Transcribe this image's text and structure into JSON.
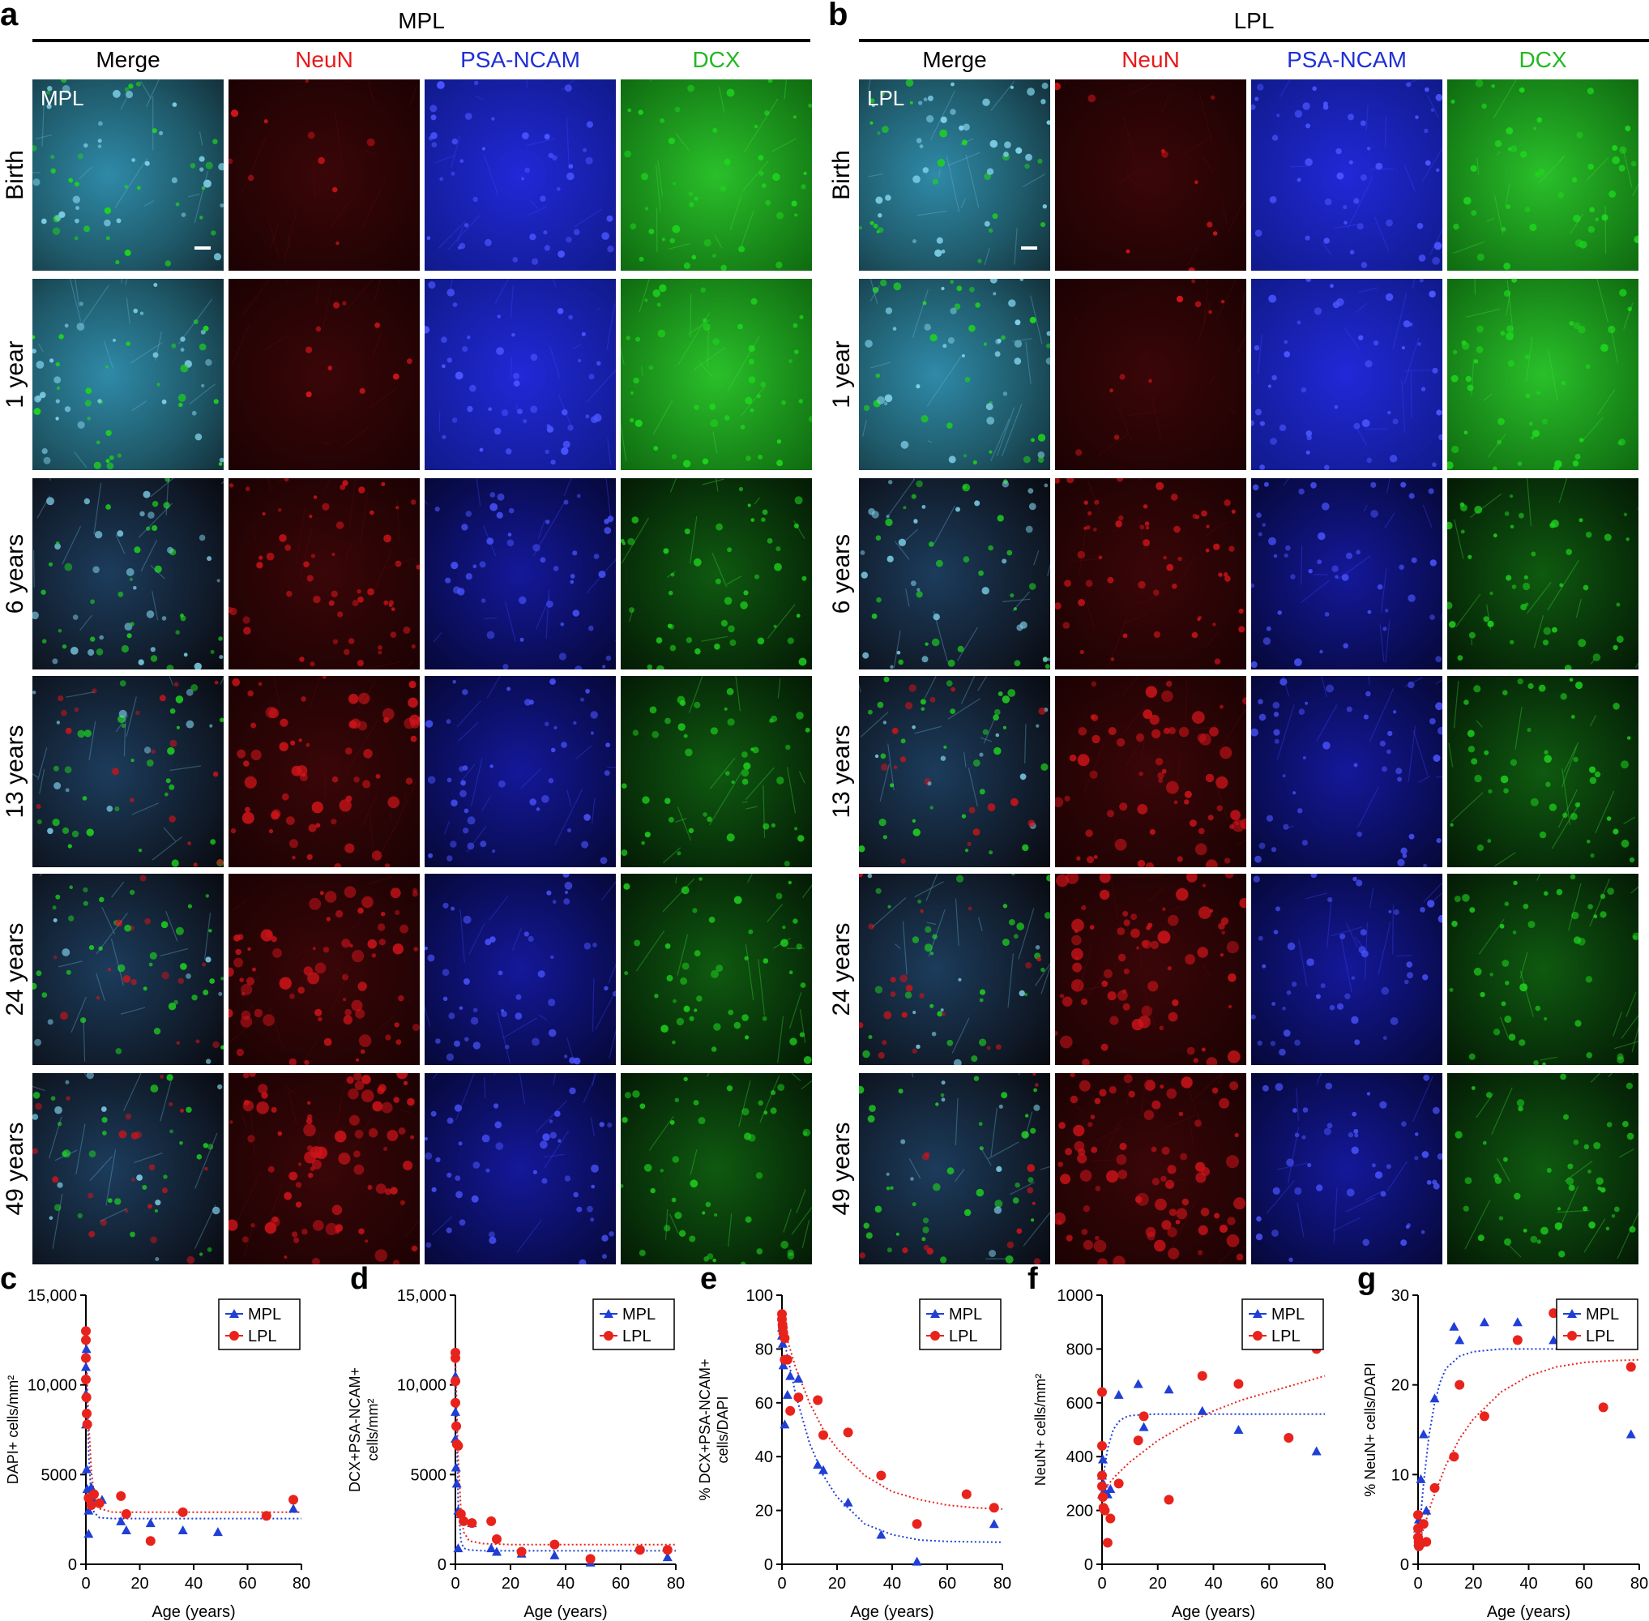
{
  "panel_letters": {
    "a": "a",
    "b": "b",
    "c": "c",
    "d": "d",
    "e": "e",
    "f": "f",
    "g": "g"
  },
  "regions": {
    "left": "MPL",
    "right": "LPL"
  },
  "columns": [
    {
      "label": "Merge",
      "color": "#000000"
    },
    {
      "label": "NeuN",
      "color": "#e8191c"
    },
    {
      "label": "PSA-NCAM",
      "color": "#1f2fd6"
    },
    {
      "label": "DCX",
      "color": "#22b822"
    }
  ],
  "rows": [
    "Birth",
    "1 year",
    "6 years",
    "13 years",
    "24 years",
    "49 years"
  ],
  "inset_labels": {
    "left": "MPL",
    "right": "LPL"
  },
  "micro_colors": {
    "red": "#d0141a",
    "blue": "#1a22e0",
    "green": "#1ed41e",
    "merge_base": "#2a6a8a"
  },
  "legend_colors": {
    "MPL": "#1f3fd6",
    "LPL": "#e8231c"
  },
  "chart_data": [
    {
      "type": "scatter",
      "panel": "c",
      "xlabel": "Age (years)",
      "ylabel": "DAPI+ cells/mm²",
      "xlim": [
        0,
        80
      ],
      "ylim": [
        0,
        15000
      ],
      "xticks": [
        "0",
        "20",
        "40",
        "60",
        "80"
      ],
      "yticks": [
        "0",
        "5000",
        "10,000",
        "15,000"
      ],
      "legend_position": "top-right",
      "series": [
        {
          "name": "MPL",
          "marker": "triangle",
          "x": [
            0,
            0,
            0,
            0.2,
            0.3,
            0.5,
            1,
            1,
            2,
            3,
            6,
            13,
            15,
            24,
            36,
            49,
            77
          ],
          "y": [
            7800,
            9500,
            11000,
            12000,
            5300,
            4200,
            3000,
            1700,
            4300,
            3500,
            3600,
            2400,
            1900,
            2300,
            1900,
            1800,
            3100
          ]
        },
        {
          "name": "LPL",
          "marker": "circle",
          "x": [
            0,
            0,
            0,
            0,
            0.2,
            0.3,
            0.5,
            1,
            2,
            3,
            5,
            13,
            15,
            24,
            36,
            67,
            77
          ],
          "y": [
            13000,
            12500,
            11500,
            10300,
            9300,
            8400,
            7800,
            3700,
            3300,
            3900,
            3400,
            3800,
            2800,
            1300,
            2900,
            2700,
            3600
          ]
        },
        {
          "name": "MPL fit",
          "style": "dotted",
          "x": [
            0,
            1,
            2,
            3,
            5,
            10,
            20,
            40,
            60,
            80
          ],
          "y": [
            12000,
            6200,
            3700,
            2900,
            2600,
            2550,
            2550,
            2550,
            2550,
            2550
          ]
        },
        {
          "name": "LPL fit",
          "style": "dotted",
          "x": [
            0,
            1,
            2,
            3,
            5,
            10,
            20,
            40,
            60,
            80
          ],
          "y": [
            12500,
            8000,
            5200,
            3900,
            3100,
            2900,
            2900,
            2900,
            2900,
            2900
          ]
        }
      ]
    },
    {
      "type": "scatter",
      "panel": "d",
      "xlabel": "Age (years)",
      "ylabel": "DCX+PSA-NCAM+ cells/mm²",
      "xlim": [
        0,
        80
      ],
      "ylim": [
        0,
        15000
      ],
      "xticks": [
        "0",
        "20",
        "40",
        "60",
        "80"
      ],
      "yticks": [
        "0",
        "5000",
        "10,000",
        "15,000"
      ],
      "legend_position": "top-right",
      "series": [
        {
          "name": "MPL",
          "marker": "triangle",
          "x": [
            0,
            0,
            0,
            0.2,
            0.5,
            1,
            1,
            2,
            6,
            13,
            15,
            24,
            36,
            49,
            77
          ],
          "y": [
            10500,
            8500,
            7000,
            5400,
            4500,
            3000,
            900,
            2800,
            2300,
            900,
            700,
            600,
            500,
            100,
            400
          ]
        },
        {
          "name": "LPL",
          "marker": "circle",
          "x": [
            0,
            0,
            0,
            0,
            0.3,
            0.5,
            1,
            2,
            3,
            6,
            13,
            15,
            24,
            36,
            49,
            67,
            77
          ],
          "y": [
            11800,
            11500,
            10200,
            9000,
            7700,
            6700,
            6600,
            2800,
            2400,
            2300,
            2400,
            1400,
            700,
            1100,
            300,
            800,
            800
          ]
        },
        {
          "name": "MPL fit",
          "style": "dotted",
          "x": [
            0,
            1,
            2,
            3,
            5,
            10,
            20,
            40,
            60,
            80
          ],
          "y": [
            11000,
            3500,
            1300,
            900,
            800,
            750,
            750,
            750,
            750,
            750
          ]
        },
        {
          "name": "LPL fit",
          "style": "dotted",
          "x": [
            0,
            1,
            2,
            3,
            5,
            10,
            20,
            40,
            60,
            80
          ],
          "y": [
            11500,
            6000,
            3000,
            1800,
            1300,
            1150,
            1100,
            1100,
            1100,
            1100
          ]
        }
      ]
    },
    {
      "type": "scatter",
      "panel": "e",
      "xlabel": "Age (years)",
      "ylabel": "% DCX+PSA-NCAM+ cells/DAPI",
      "xlim": [
        0,
        80
      ],
      "ylim": [
        0,
        100
      ],
      "xticks": [
        "0",
        "20",
        "40",
        "60",
        "80"
      ],
      "yticks": [
        "0",
        "20",
        "40",
        "60",
        "80",
        "100"
      ],
      "legend_position": "top-right",
      "series": [
        {
          "name": "MPL",
          "marker": "triangle",
          "x": [
            0,
            0,
            0.3,
            0.5,
            1,
            2,
            3,
            6,
            13,
            15,
            24,
            36,
            49,
            77
          ],
          "y": [
            88,
            85,
            82,
            74,
            52,
            63,
            70,
            69,
            37,
            35,
            23,
            11,
            1,
            15
          ]
        },
        {
          "name": "LPL",
          "marker": "circle",
          "x": [
            0,
            0,
            0.2,
            0.3,
            0.5,
            1,
            1,
            2,
            3,
            6,
            13,
            15,
            24,
            36,
            49,
            67,
            77
          ],
          "y": [
            93,
            91,
            89,
            88,
            86,
            84,
            76,
            76,
            57,
            62,
            61,
            48,
            49,
            33,
            15,
            26,
            21
          ]
        },
        {
          "name": "MPL fit",
          "style": "dotted",
          "x": [
            0,
            5,
            10,
            15,
            20,
            30,
            40,
            50,
            60,
            70,
            80
          ],
          "y": [
            87,
            63,
            45,
            33,
            25,
            15,
            11,
            9,
            8.5,
            8.3,
            8.2
          ]
        },
        {
          "name": "LPL fit",
          "style": "dotted",
          "x": [
            0,
            5,
            10,
            15,
            20,
            30,
            40,
            50,
            60,
            70,
            80
          ],
          "y": [
            90,
            73,
            60,
            50,
            43,
            33,
            27,
            24,
            22,
            21,
            20.5
          ]
        }
      ]
    },
    {
      "type": "scatter",
      "panel": "f",
      "xlabel": "Age (years)",
      "ylabel": "NeuN+ cells/mm²",
      "xlim": [
        0,
        80
      ],
      "ylim": [
        0,
        1000
      ],
      "xticks": [
        "0",
        "20",
        "40",
        "60",
        "80"
      ],
      "yticks": [
        "0",
        "200",
        "400",
        "600",
        "800",
        "1000"
      ],
      "legend_position": "top-right",
      "series": [
        {
          "name": "MPL",
          "marker": "triangle",
          "x": [
            0,
            0,
            0.3,
            0.5,
            1,
            2,
            3,
            6,
            13,
            15,
            24,
            36,
            49,
            77
          ],
          "y": [
            260,
            330,
            390,
            300,
            270,
            260,
            280,
            630,
            670,
            510,
            650,
            570,
            500,
            420
          ]
        },
        {
          "name": "LPL",
          "marker": "circle",
          "x": [
            0,
            0,
            0,
            0,
            0.3,
            0.5,
            1,
            2,
            3,
            6,
            13,
            15,
            24,
            36,
            49,
            67,
            77
          ],
          "y": [
            640,
            440,
            330,
            290,
            250,
            210,
            200,
            80,
            170,
            300,
            460,
            550,
            240,
            700,
            670,
            470,
            800
          ]
        },
        {
          "name": "MPL fit",
          "style": "dotted",
          "x": [
            0,
            2,
            4,
            6,
            8,
            10,
            15,
            20,
            40,
            60,
            80
          ],
          "y": [
            300,
            430,
            500,
            530,
            545,
            552,
            557,
            558,
            558,
            558,
            558
          ]
        },
        {
          "name": "LPL fit",
          "style": "dotted",
          "x": [
            0,
            5,
            10,
            15,
            20,
            30,
            40,
            50,
            60,
            70,
            80
          ],
          "y": [
            270,
            330,
            380,
            420,
            460,
            520,
            570,
            610,
            640,
            670,
            700
          ]
        }
      ]
    },
    {
      "type": "scatter",
      "panel": "g",
      "xlabel": "Age (years)",
      "ylabel": "% NeuN+ cells/DAPI",
      "xlim": [
        0,
        80
      ],
      "ylim": [
        0,
        30
      ],
      "xticks": [
        "0",
        "20",
        "40",
        "60",
        "80"
      ],
      "yticks": [
        "0",
        "10",
        "20",
        "30"
      ],
      "legend_position": "top-right",
      "series": [
        {
          "name": "MPL",
          "marker": "triangle",
          "x": [
            0,
            0,
            0.3,
            0.5,
            1,
            2,
            3,
            6,
            13,
            15,
            24,
            36,
            49,
            77
          ],
          "y": [
            2.5,
            4,
            5,
            3,
            9.5,
            14.5,
            6,
            18.5,
            26.5,
            25,
            27,
            27,
            25,
            14.5
          ]
        },
        {
          "name": "LPL",
          "marker": "circle",
          "x": [
            0,
            0,
            0,
            0.2,
            0.3,
            0.5,
            1,
            2,
            3,
            6,
            13,
            15,
            24,
            36,
            49,
            67,
            77
          ],
          "y": [
            5.5,
            4,
            3,
            2.5,
            2,
            2.2,
            2.3,
            4.5,
            2.5,
            8.5,
            12,
            20,
            16.5,
            25,
            28,
            17.5,
            22
          ]
        },
        {
          "name": "MPL fit",
          "style": "dotted",
          "x": [
            0,
            2,
            4,
            6,
            8,
            10,
            15,
            20,
            30,
            40,
            60,
            80
          ],
          "y": [
            2,
            9,
            14.5,
            18,
            20.3,
            21.8,
            23.2,
            23.7,
            24,
            24,
            24,
            24
          ]
        },
        {
          "name": "LPL fit",
          "style": "dotted",
          "x": [
            0,
            5,
            10,
            15,
            20,
            30,
            40,
            50,
            60,
            70,
            80
          ],
          "y": [
            2,
            7,
            11,
            14,
            16.2,
            19.2,
            21,
            22,
            22.5,
            22.7,
            22.8
          ]
        }
      ]
    }
  ]
}
